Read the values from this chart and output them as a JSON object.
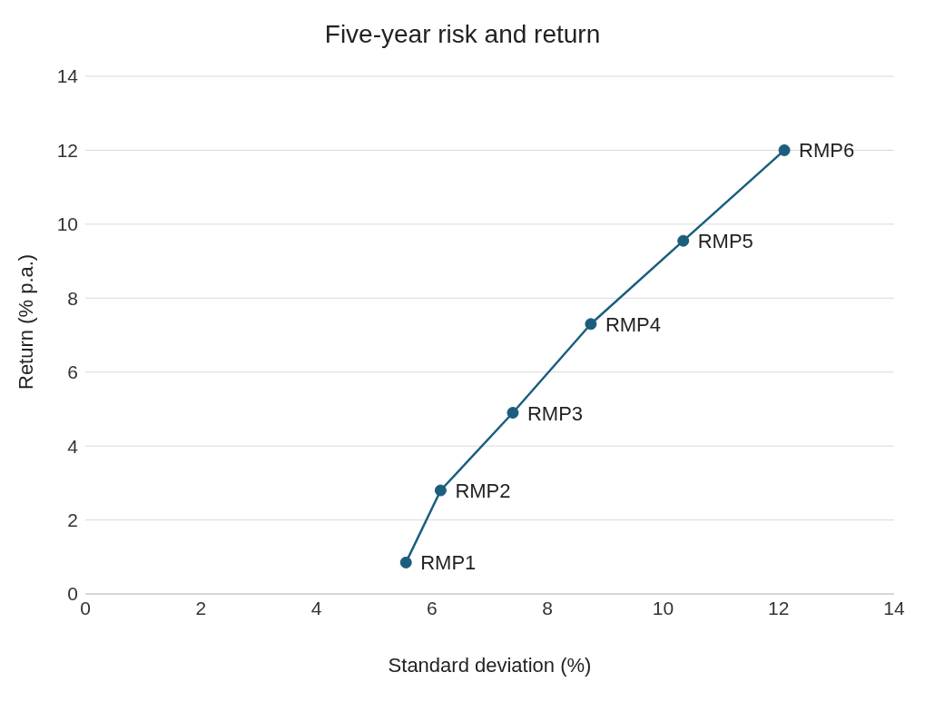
{
  "chart_data": {
    "type": "line",
    "title": "Five-year risk and return",
    "xlabel": "Standard deviation (%)",
    "ylabel": "Return (% p.a.)",
    "x": [
      5.55,
      6.15,
      7.4,
      8.75,
      10.35,
      12.1
    ],
    "series": [
      {
        "color": "#1b5e7e",
        "values": [
          0.85,
          2.8,
          4.9,
          7.3,
          9.55,
          12.0
        ]
      }
    ],
    "annotations": [
      {
        "text": "RMP1",
        "x": 5.55,
        "y": 0.85
      },
      {
        "text": "RMP2",
        "x": 6.15,
        "y": 2.8
      },
      {
        "text": "RMP3",
        "x": 7.4,
        "y": 4.9
      },
      {
        "text": "RMP4",
        "x": 8.75,
        "y": 7.3
      },
      {
        "text": "RMP5",
        "x": 10.35,
        "y": 9.55
      },
      {
        "text": "RMP6",
        "x": 12.1,
        "y": 12.0
      }
    ],
    "xlim": [
      0,
      14
    ],
    "xticks": [
      0,
      2,
      4,
      6,
      8,
      10,
      12,
      14
    ],
    "ylim": [
      0,
      14
    ],
    "yticks": [
      0,
      2,
      4,
      6,
      8,
      10,
      12,
      14
    ],
    "grid": "y",
    "marker": "circle",
    "line_style": "solid"
  }
}
